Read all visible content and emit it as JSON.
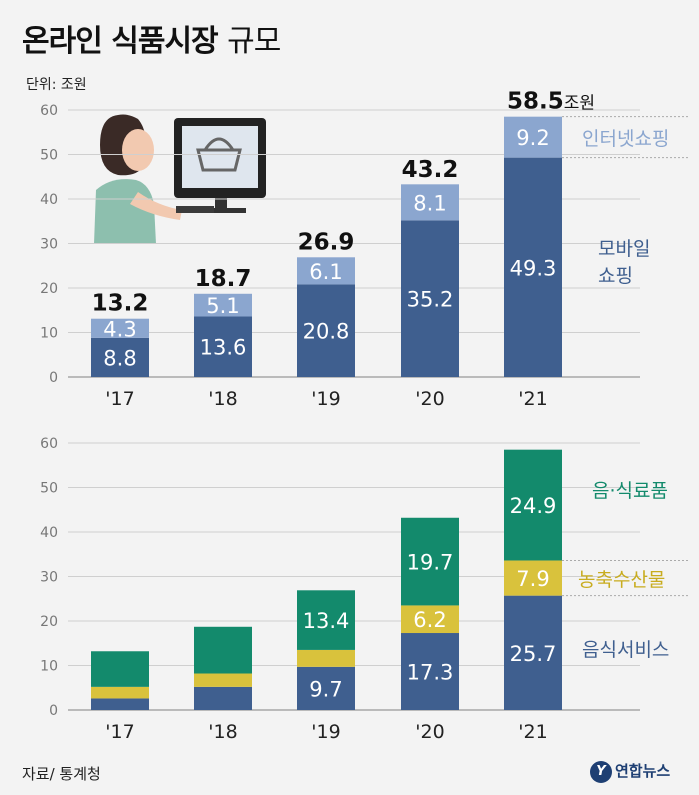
{
  "title_bold": "온라인 식품시장",
  "title_light": "규모",
  "unit": "단위: 조원",
  "source": "자료/ 통계청",
  "logo": "연합뉴스",
  "logo_mark": "Y",
  "colors": {
    "mobile": "#3f5f8f",
    "internet": "#8ba6cf",
    "food": "#138a6c",
    "agri": "#d9c23c",
    "service": "#3f5f8f",
    "grid": "#cfcfcf"
  },
  "chart_data": [
    {
      "type": "bar",
      "stacked": true,
      "categories": [
        "'17",
        "'18",
        "'19",
        "'20",
        "'21"
      ],
      "series": [
        {
          "name": "모바일 쇼핑",
          "values": [
            8.8,
            13.6,
            20.8,
            35.2,
            49.3
          ]
        },
        {
          "name": "인터넷쇼핑",
          "values": [
            4.3,
            5.1,
            6.1,
            8.1,
            9.2
          ]
        }
      ],
      "totals": [
        13.2,
        18.7,
        26.9,
        43.2,
        58.5
      ],
      "total_suffix_last": "조원",
      "ylim": [
        0,
        60
      ],
      "yticks": [
        0,
        10,
        20,
        30,
        40,
        50,
        60
      ],
      "grid": true
    },
    {
      "type": "bar",
      "stacked": true,
      "categories": [
        "'17",
        "'18",
        "'19",
        "'20",
        "'21"
      ],
      "series": [
        {
          "name": "음식서비스",
          "values": [
            2.6,
            5.2,
            9.7,
            17.3,
            25.7
          ]
        },
        {
          "name": "농축수산물",
          "values": [
            2.6,
            3.0,
            3.8,
            6.2,
            7.9
          ]
        },
        {
          "name": "음·식료품",
          "values": [
            8.0,
            10.5,
            13.4,
            19.7,
            24.9
          ]
        }
      ],
      "labeled_values": {
        "음식서비스": [
          null,
          null,
          "9.7",
          "17.3",
          "25.7"
        ],
        "농축수산물": [
          null,
          null,
          null,
          "6.2",
          "7.9"
        ],
        "음·식료품": [
          null,
          null,
          "13.4",
          "19.7",
          "24.9"
        ]
      },
      "ylim": [
        0,
        60
      ],
      "yticks": [
        0,
        10,
        20,
        30,
        40,
        50,
        60
      ],
      "grid": true
    }
  ]
}
